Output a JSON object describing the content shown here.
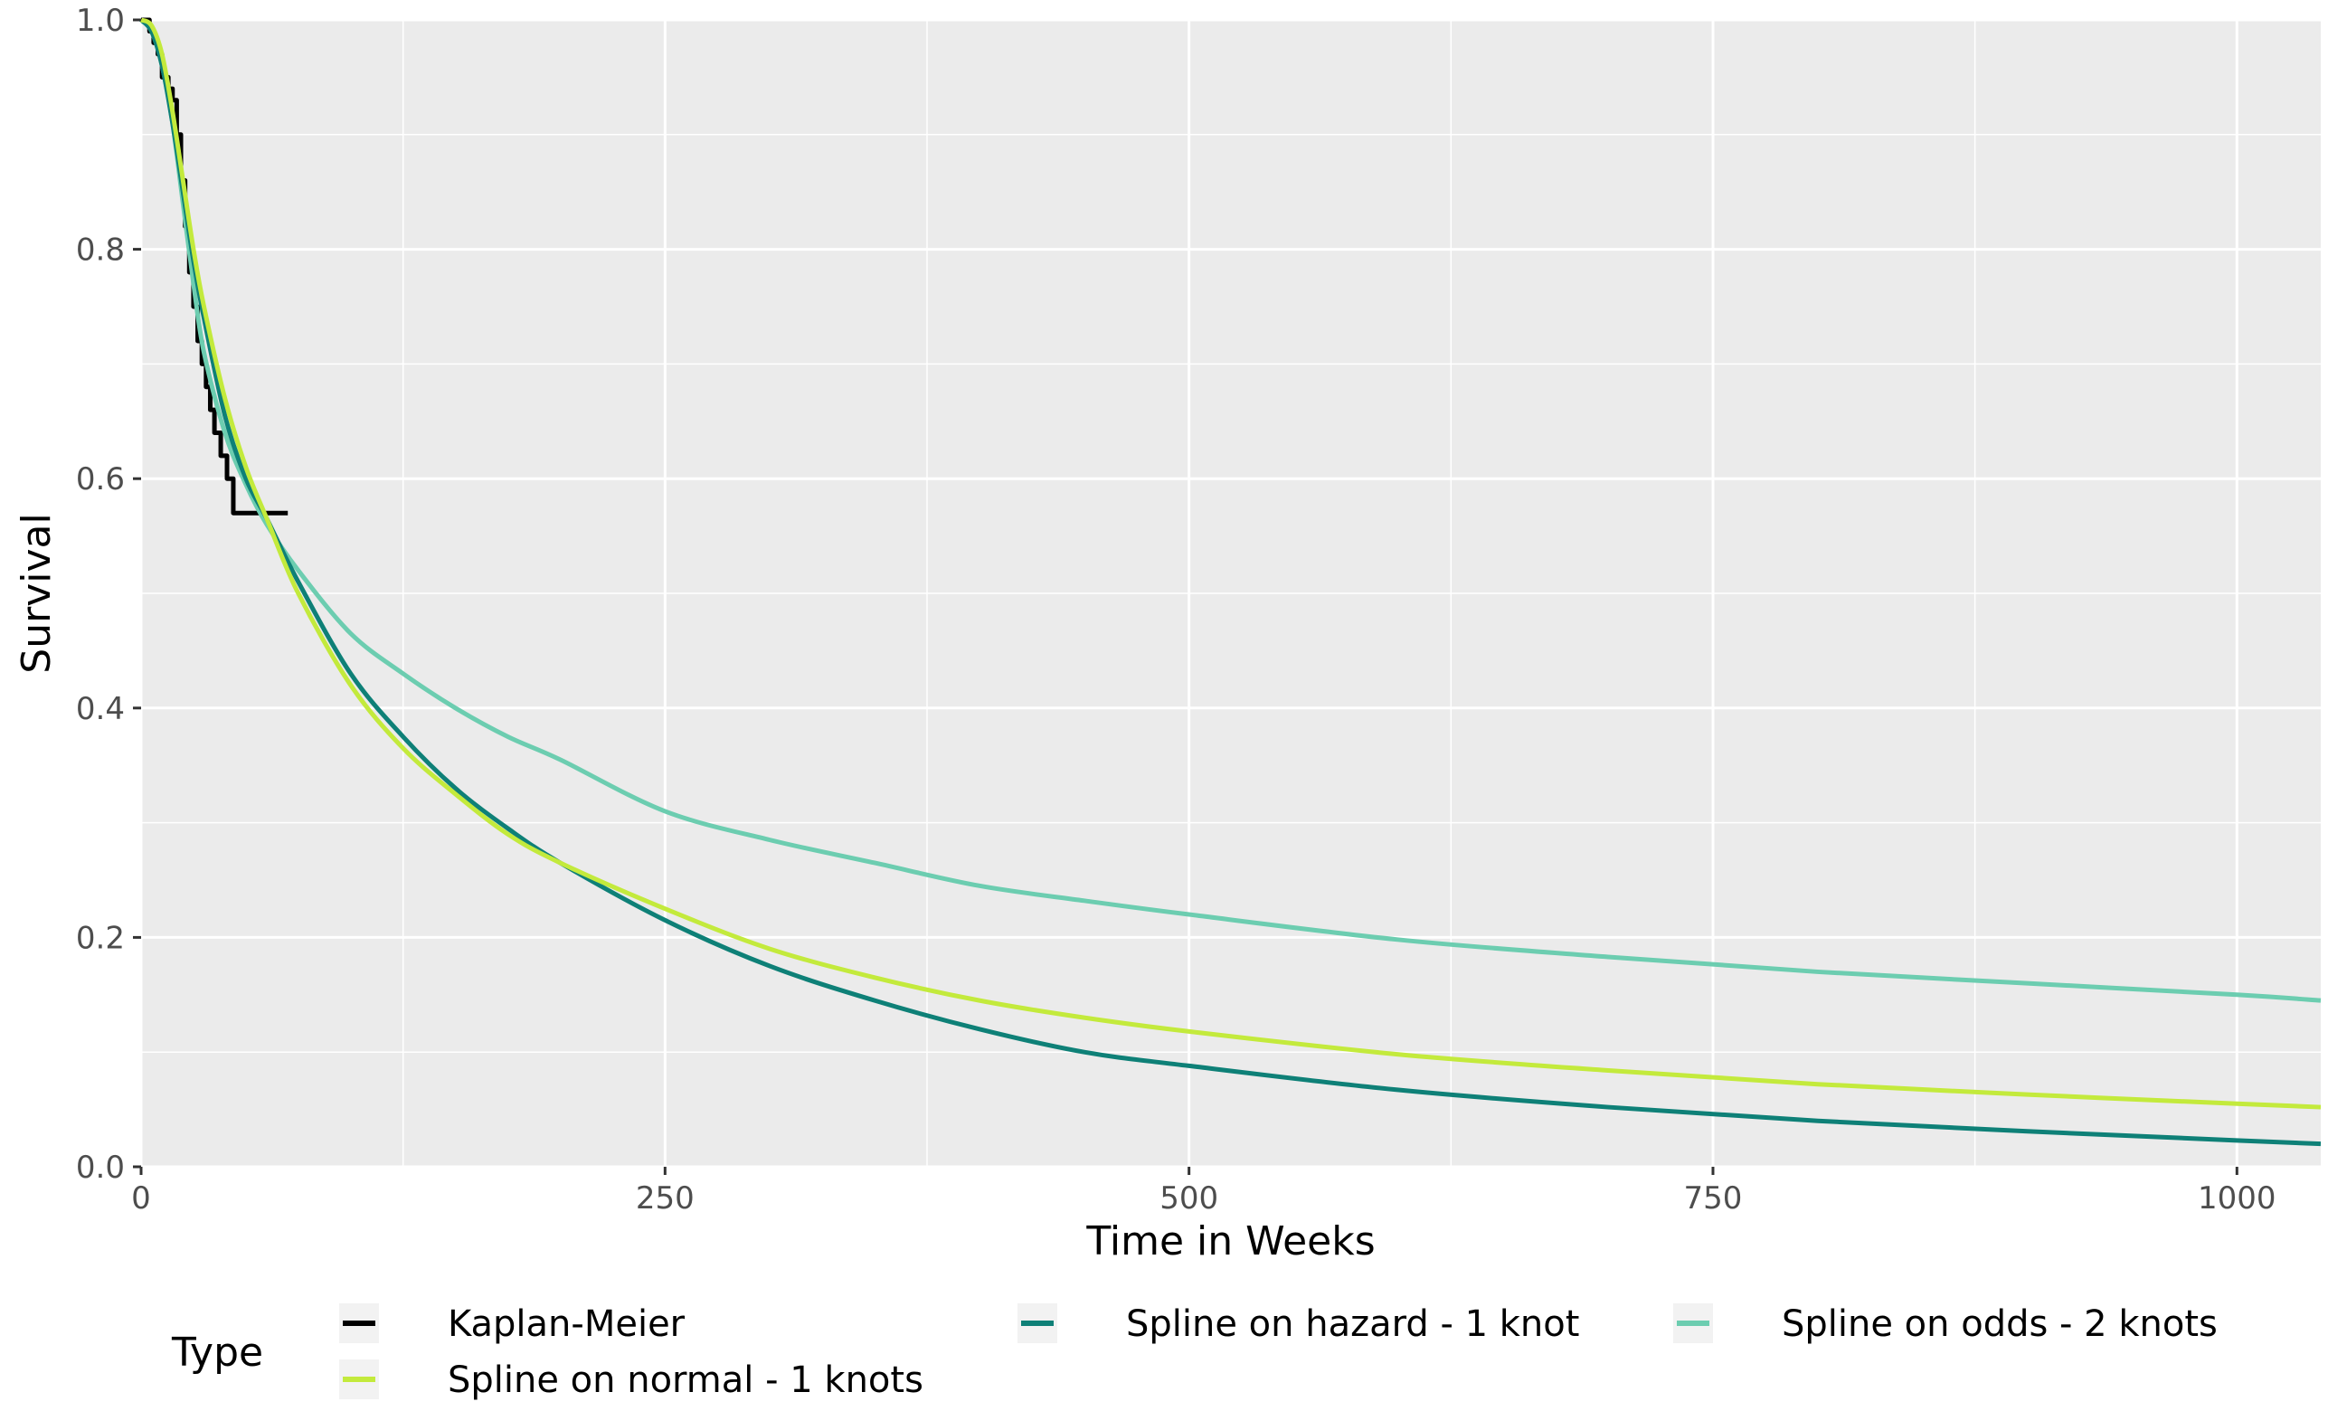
{
  "chart_data": {
    "type": "line",
    "title": "",
    "xlabel": "Time in Weeks",
    "ylabel": "Survival",
    "xlim": [
      0,
      1040
    ],
    "ylim": [
      0,
      1.0
    ],
    "x_ticks": [
      0,
      250,
      500,
      750,
      1000
    ],
    "x_tick_labels": [
      "0",
      "250",
      "500",
      "750",
      "1000"
    ],
    "y_ticks": [
      0,
      0.2,
      0.4,
      0.6,
      0.8,
      1.0
    ],
    "y_tick_labels": [
      "0.0",
      "0.2",
      "0.4",
      "0.6",
      "0.8",
      "1.0"
    ],
    "grid": true,
    "legend": {
      "title": "Type",
      "position": "bottom",
      "entries": [
        "Kaplan-Meier",
        "Spline on hazard - 1 knot",
        "Spline on odds - 2 knots",
        "Spline on normal - 1 knots"
      ]
    },
    "colors": {
      "panel_background": "#ebebeb",
      "grid": "#ffffff",
      "kaplan_meier": "#000000",
      "spline_hazard": "#0e8077",
      "spline_odds": "#6ccdb0",
      "spline_normal": "#c3ea3c"
    },
    "series": [
      {
        "name": "Kaplan-Meier",
        "style": "step",
        "x": [
          0,
          4,
          6,
          8,
          10,
          13,
          15,
          17,
          19,
          21,
          23,
          25,
          27,
          29,
          31,
          33,
          35,
          38,
          41,
          44,
          47,
          52,
          60,
          70
        ],
        "y": [
          1.0,
          0.99,
          0.98,
          0.97,
          0.95,
          0.94,
          0.93,
          0.9,
          0.86,
          0.82,
          0.78,
          0.75,
          0.72,
          0.7,
          0.68,
          0.66,
          0.64,
          0.62,
          0.6,
          0.57,
          0.57,
          0.57,
          0.57,
          0.57
        ]
      },
      {
        "name": "Spline on hazard - 1 knot",
        "x": [
          0,
          5,
          10,
          15,
          20,
          25,
          30,
          40,
          50,
          60,
          75,
          100,
          125,
          150,
          175,
          200,
          250,
          300,
          350,
          400,
          450,
          500,
          600,
          700,
          800,
          900,
          1000,
          1040
        ],
        "y": [
          1.0,
          0.99,
          0.96,
          0.91,
          0.85,
          0.79,
          0.74,
          0.655,
          0.6,
          0.565,
          0.51,
          0.43,
          0.375,
          0.33,
          0.295,
          0.265,
          0.215,
          0.175,
          0.145,
          0.12,
          0.1,
          0.088,
          0.067,
          0.052,
          0.04,
          0.031,
          0.023,
          0.02
        ]
      },
      {
        "name": "Spline on odds - 2 knots",
        "x": [
          0,
          5,
          10,
          15,
          20,
          25,
          30,
          40,
          50,
          60,
          75,
          100,
          125,
          150,
          175,
          200,
          250,
          300,
          350,
          400,
          450,
          500,
          600,
          700,
          800,
          900,
          1000,
          1040
        ],
        "y": [
          1.0,
          0.99,
          0.96,
          0.91,
          0.84,
          0.77,
          0.71,
          0.64,
          0.595,
          0.56,
          0.52,
          0.465,
          0.43,
          0.4,
          0.375,
          0.355,
          0.31,
          0.285,
          0.265,
          0.245,
          0.232,
          0.22,
          0.198,
          0.183,
          0.17,
          0.16,
          0.15,
          0.145
        ]
      },
      {
        "name": "Spline on normal - 1 knots",
        "x": [
          0,
          5,
          10,
          15,
          20,
          25,
          30,
          40,
          50,
          60,
          75,
          100,
          125,
          150,
          175,
          200,
          250,
          300,
          350,
          400,
          450,
          500,
          600,
          700,
          800,
          900,
          1000,
          1040
        ],
        "y": [
          1.0,
          0.995,
          0.97,
          0.92,
          0.86,
          0.8,
          0.75,
          0.67,
          0.61,
          0.565,
          0.5,
          0.42,
          0.365,
          0.325,
          0.29,
          0.265,
          0.225,
          0.19,
          0.165,
          0.145,
          0.13,
          0.118,
          0.098,
          0.084,
          0.072,
          0.063,
          0.055,
          0.052
        ]
      }
    ]
  }
}
